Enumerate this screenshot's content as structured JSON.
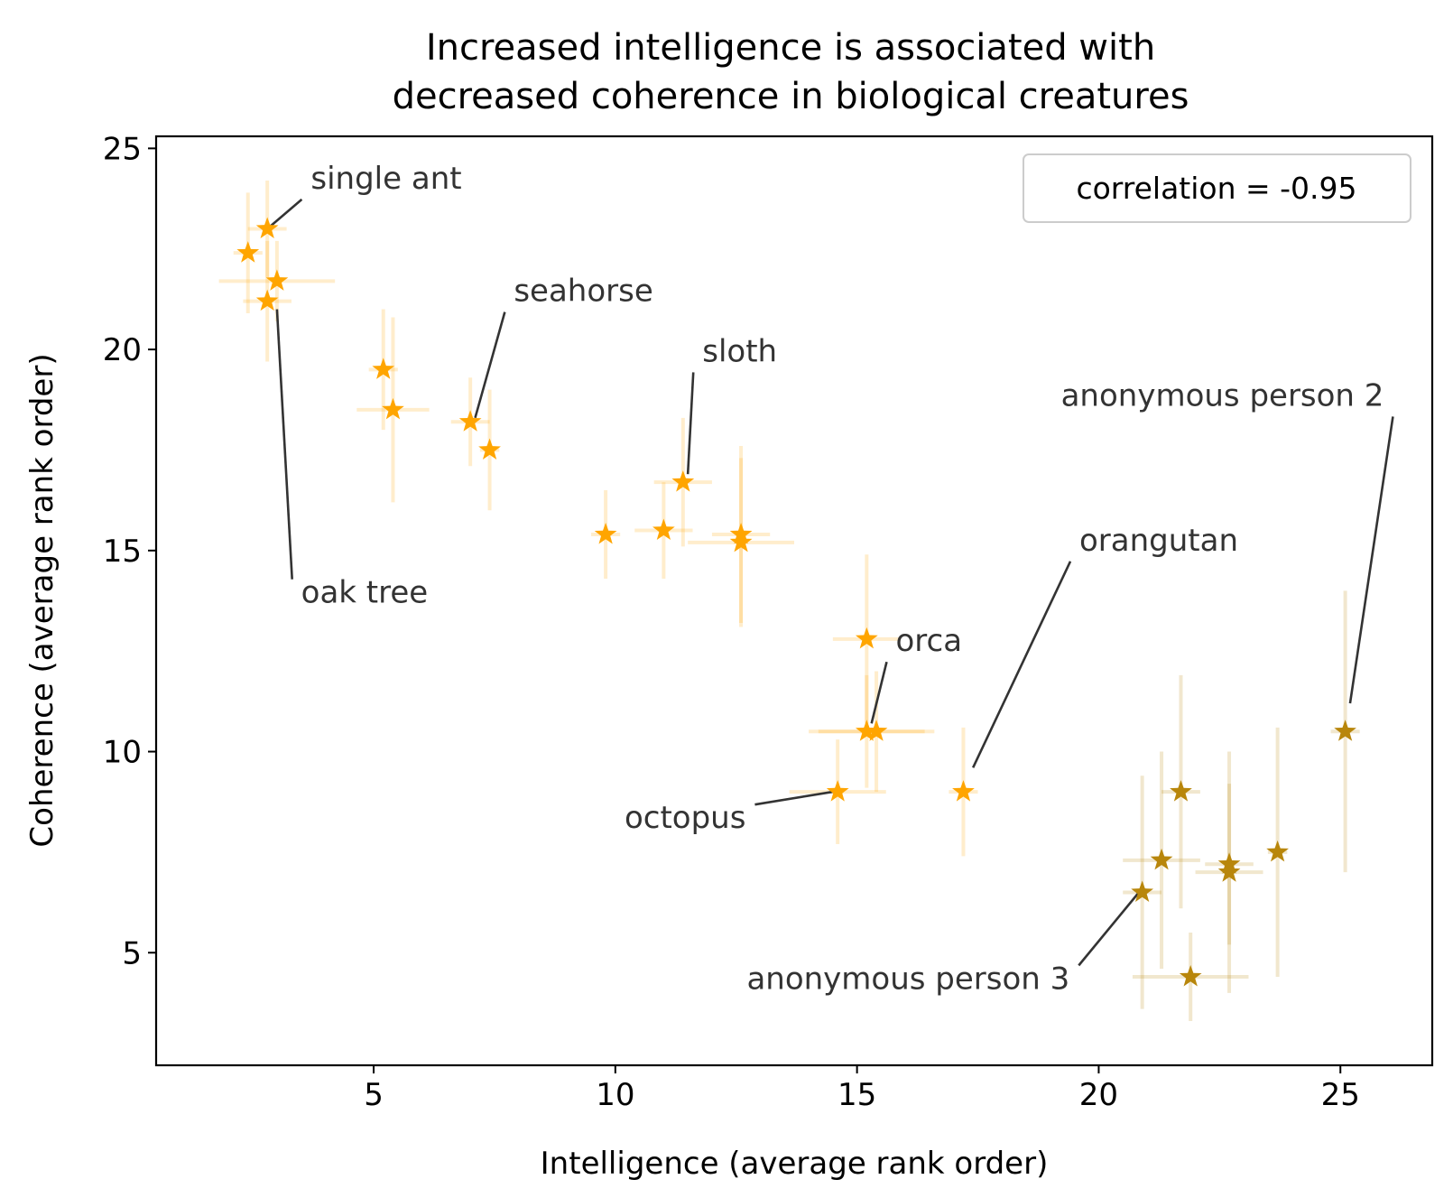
{
  "chart_data": {
    "type": "scatter",
    "title_lines": [
      "Increased intelligence is associated with",
      "decreased coherence in biological creatures"
    ],
    "xlabel": "Intelligence (average rank order)",
    "ylabel": "Coherence (average rank order)",
    "xlim": [
      0.5,
      26.9
    ],
    "ylim": [
      2.2,
      25.3
    ],
    "xticks": [
      5,
      10,
      15,
      20,
      25
    ],
    "yticks": [
      5,
      10,
      15,
      20,
      25
    ],
    "legend": {
      "text": "correlation = -0.95",
      "position": "top-right"
    },
    "grid": false,
    "marker": "star",
    "colors": {
      "creature": "#ffa500",
      "person": "#b8860b",
      "annotation_line": "#333333"
    },
    "points": [
      {
        "x": 2.8,
        "y": 23.0,
        "xerr": 0.4,
        "yerr": 1.2,
        "group": "creature"
      },
      {
        "x": 2.4,
        "y": 22.4,
        "xerr": 0.3,
        "yerr": 1.5,
        "group": "creature"
      },
      {
        "x": 3.0,
        "y": 21.7,
        "xerr": 1.2,
        "yerr": 1.0,
        "group": "creature"
      },
      {
        "x": 2.8,
        "y": 21.2,
        "xerr": 0.5,
        "yerr": 1.5,
        "group": "creature"
      },
      {
        "x": 5.2,
        "y": 19.5,
        "xerr": 0.3,
        "yerr": 1.5,
        "group": "creature"
      },
      {
        "x": 5.4,
        "y": 18.5,
        "xerr": 0.75,
        "yerr": 2.3,
        "group": "creature"
      },
      {
        "x": 7.0,
        "y": 18.2,
        "xerr": 0.4,
        "yerr": 1.1,
        "group": "creature"
      },
      {
        "x": 7.4,
        "y": 17.5,
        "xerr": 0.2,
        "yerr": 1.5,
        "group": "creature"
      },
      {
        "x": 11.4,
        "y": 16.7,
        "xerr": 0.6,
        "yerr": 1.6,
        "group": "creature"
      },
      {
        "x": 9.8,
        "y": 15.4,
        "xerr": 0.3,
        "yerr": 1.1,
        "group": "creature"
      },
      {
        "x": 11.0,
        "y": 15.5,
        "xerr": 0.6,
        "yerr": 1.2,
        "group": "creature"
      },
      {
        "x": 12.6,
        "y": 15.4,
        "xerr": 0.6,
        "yerr": 2.2,
        "group": "creature"
      },
      {
        "x": 12.6,
        "y": 15.2,
        "xerr": 1.1,
        "yerr": 2.1,
        "group": "creature"
      },
      {
        "x": 15.2,
        "y": 12.8,
        "xerr": 0.7,
        "yerr": 2.1,
        "group": "creature"
      },
      {
        "x": 15.2,
        "y": 10.5,
        "xerr": 1.2,
        "yerr": 1.4,
        "group": "creature"
      },
      {
        "x": 15.4,
        "y": 10.5,
        "xerr": 1.2,
        "yerr": 1.5,
        "group": "creature"
      },
      {
        "x": 14.6,
        "y": 9.0,
        "xerr": 1.0,
        "yerr": 1.3,
        "group": "creature"
      },
      {
        "x": 17.2,
        "y": 9.0,
        "xerr": 0.3,
        "yerr": 1.6,
        "group": "creature"
      },
      {
        "x": 20.9,
        "y": 6.5,
        "xerr": 0.4,
        "yerr": 2.9,
        "group": "person"
      },
      {
        "x": 21.3,
        "y": 7.3,
        "xerr": 0.8,
        "yerr": 2.7,
        "group": "person"
      },
      {
        "x": 21.7,
        "y": 9.0,
        "xerr": 0.4,
        "yerr": 2.9,
        "group": "person"
      },
      {
        "x": 21.9,
        "y": 4.4,
        "xerr": 1.2,
        "yerr": 1.1,
        "group": "person"
      },
      {
        "x": 22.7,
        "y": 7.2,
        "xerr": 0.5,
        "yerr": 2.0,
        "group": "person"
      },
      {
        "x": 22.7,
        "y": 7.0,
        "xerr": 0.7,
        "yerr": 3.0,
        "group": "person"
      },
      {
        "x": 23.7,
        "y": 7.5,
        "xerr": 0.2,
        "yerr": 3.1,
        "group": "person"
      },
      {
        "x": 25.1,
        "y": 10.5,
        "xerr": 0.3,
        "yerr": 3.5,
        "group": "person"
      }
    ],
    "annotations": [
      {
        "text": "single ant",
        "x": 2.8,
        "y": 23.0,
        "text_x": 3.7,
        "text_y": 24.0,
        "anchor": "start"
      },
      {
        "text": "oak tree",
        "x": 3.0,
        "y": 21.0,
        "text_x": 3.5,
        "text_y": 13.7,
        "anchor": "start"
      },
      {
        "text": "seahorse",
        "x": 7.1,
        "y": 18.3,
        "text_x": 7.9,
        "text_y": 21.2,
        "anchor": "start"
      },
      {
        "text": "sloth",
        "x": 11.5,
        "y": 16.9,
        "text_x": 11.8,
        "text_y": 19.7,
        "anchor": "start"
      },
      {
        "text": "orca",
        "x": 15.3,
        "y": 10.7,
        "text_x": 15.8,
        "text_y": 12.5,
        "anchor": "start"
      },
      {
        "text": "octopus",
        "x": 14.5,
        "y": 9.0,
        "text_x": 12.7,
        "text_y": 8.1,
        "anchor": "end"
      },
      {
        "text": "orangutan",
        "x": 17.4,
        "y": 9.6,
        "text_x": 19.6,
        "text_y": 15.0,
        "anchor": "start"
      },
      {
        "text": "anonymous person 2",
        "x": 25.2,
        "y": 11.2,
        "text_x": 25.9,
        "text_y": 18.6,
        "anchor": "end"
      },
      {
        "text": "anonymous person 3",
        "x": 20.9,
        "y": 6.6,
        "text_x": 19.4,
        "text_y": 4.1,
        "anchor": "end"
      }
    ]
  }
}
